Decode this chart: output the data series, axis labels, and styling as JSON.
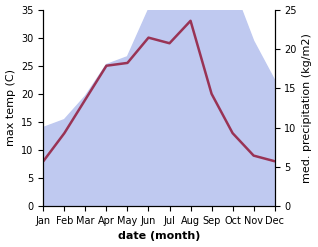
{
  "months": [
    "Jan",
    "Feb",
    "Mar",
    "Apr",
    "May",
    "Jun",
    "Jul",
    "Aug",
    "Sep",
    "Oct",
    "Nov",
    "Dec"
  ],
  "max_temp": [
    8.0,
    13.0,
    19.0,
    25.0,
    25.5,
    30.0,
    29.0,
    33.0,
    20.0,
    13.0,
    9.0,
    8.0
  ],
  "precipitation": [
    10,
    11,
    14,
    18,
    19,
    25,
    33,
    33,
    28,
    28,
    21,
    16
  ],
  "temp_color": "#993355",
  "precip_fill_color": "#bfc9f0",
  "temp_ylim": [
    0,
    35
  ],
  "precip_ylim": [
    0,
    25
  ],
  "xlabel": "date (month)",
  "ylabel_left": "max temp (C)",
  "ylabel_right": "med. precipitation (kg/m2)",
  "background_color": "#ffffff",
  "temp_linewidth": 1.8,
  "xlabel_fontsize": 8,
  "ylabel_fontsize": 8,
  "tick_fontsize": 7
}
